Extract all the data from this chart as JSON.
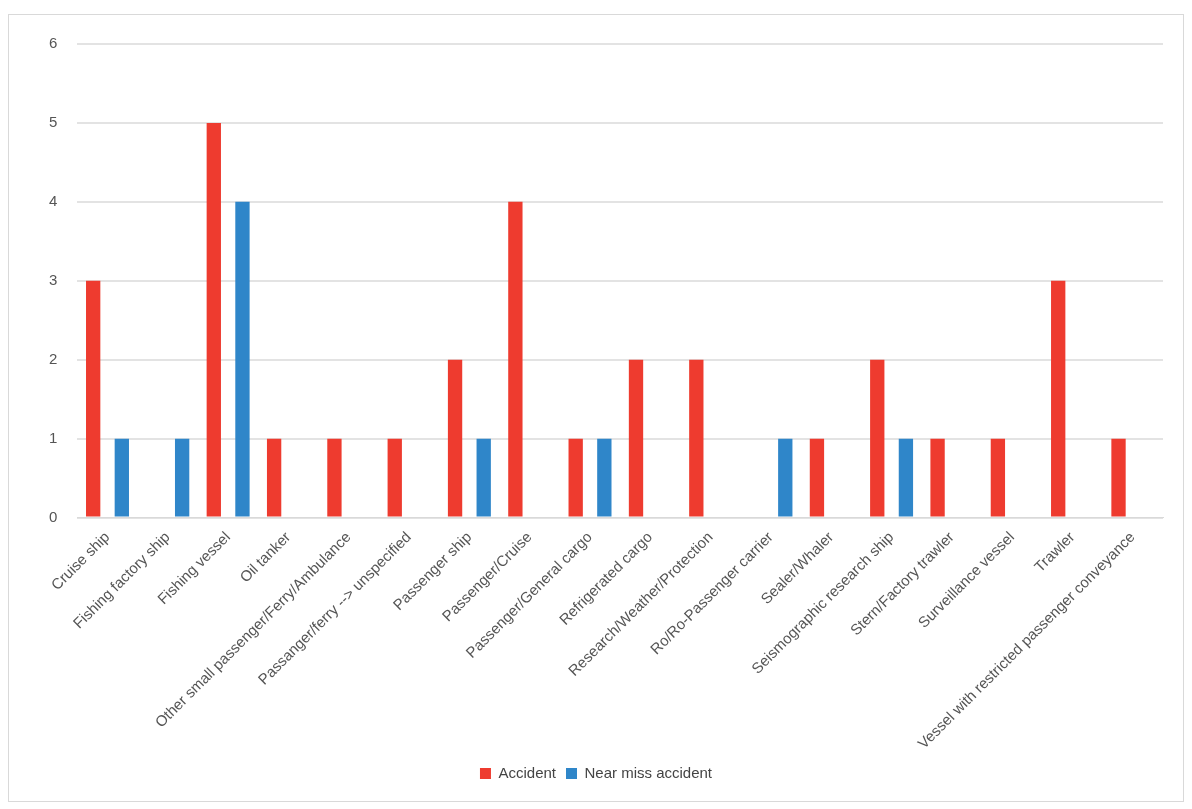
{
  "chart_data": {
    "type": "bar",
    "categories": [
      "Cruise ship",
      "Fishing factory ship",
      "Fishing vessel",
      "Oil tanker",
      "Other small passenger/Ferry/Ambulance",
      "Passanger/ferry --> unspecified",
      "Passenger ship",
      "Passenger/Cruise",
      "Passenger/General cargo",
      "Refrigerated cargo",
      "Research/Weather/Protection",
      "Ro/Ro-Passenger carrier",
      "Sealer/Whaler",
      "Seismographic research ship",
      "Stern/Factory trawler",
      "Surveillance vessel",
      "Trawler",
      "Vessel with restricted passenger conveyance"
    ],
    "series": [
      {
        "name": "Accident",
        "color": "#ee3b2f",
        "values": [
          3,
          0,
          5,
          1,
          1,
          1,
          2,
          4,
          1,
          2,
          2,
          0,
          1,
          2,
          1,
          1,
          3,
          1
        ]
      },
      {
        "name": "Near miss accident",
        "color": "#2f86c9",
        "values": [
          1,
          1,
          4,
          0,
          0,
          0,
          1,
          0,
          1,
          0,
          0,
          1,
          0,
          1,
          0,
          0,
          0,
          0
        ]
      }
    ],
    "ylim": [
      0,
      6
    ],
    "yticks": [
      0,
      1,
      2,
      3,
      4,
      5,
      6
    ],
    "grid": "y",
    "legend": "bottom"
  }
}
